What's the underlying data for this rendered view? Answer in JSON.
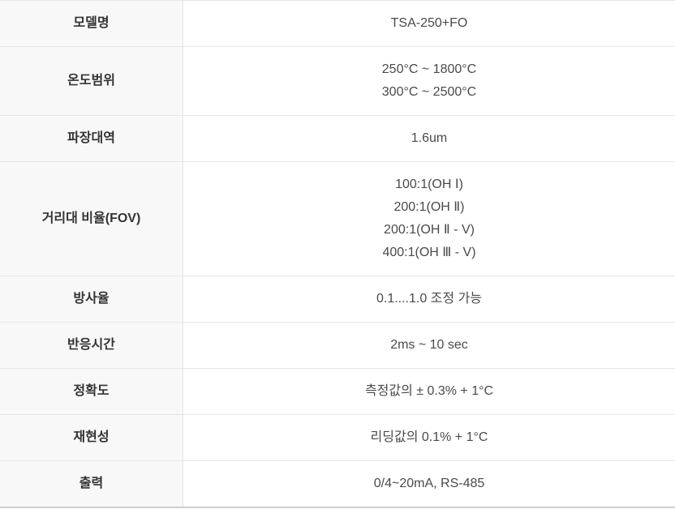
{
  "table": {
    "product_model": "TSA-250+FO",
    "colors": {
      "label_column_bg": "#f8f8f8",
      "value_column_bg": "#ffffff",
      "border": "#e6e6e6",
      "bottom_border": "#cfcfcf",
      "label_text": "#333333",
      "value_text": "#4a4a4a"
    },
    "rows": [
      {
        "label": "모델명",
        "values": [
          "TSA-250+FO"
        ]
      },
      {
        "label": "온도범위",
        "values": [
          "250°C ~ 1800°C",
          "300°C ~ 2500°C"
        ]
      },
      {
        "label": "파장대역",
        "values": [
          "1.6um"
        ]
      },
      {
        "label": "거리대 비율(FOV)",
        "values": [
          "100:1(OH Ⅰ)",
          "200:1(OH Ⅱ)",
          "200:1(OH Ⅱ - V)",
          "400:1(OH Ⅲ - V)"
        ]
      },
      {
        "label": "방사율",
        "values": [
          "0.1....1.0 조정 가능"
        ]
      },
      {
        "label": "반응시간",
        "values": [
          "2ms ~ 10 sec"
        ]
      },
      {
        "label": "정확도",
        "values": [
          "측정값의 ± 0.3% + 1°C"
        ]
      },
      {
        "label": "재현성",
        "values": [
          "리딩값의 0.1% + 1°C"
        ]
      },
      {
        "label": "출력",
        "values": [
          "0/4~20mA, RS-485"
        ]
      }
    ]
  }
}
